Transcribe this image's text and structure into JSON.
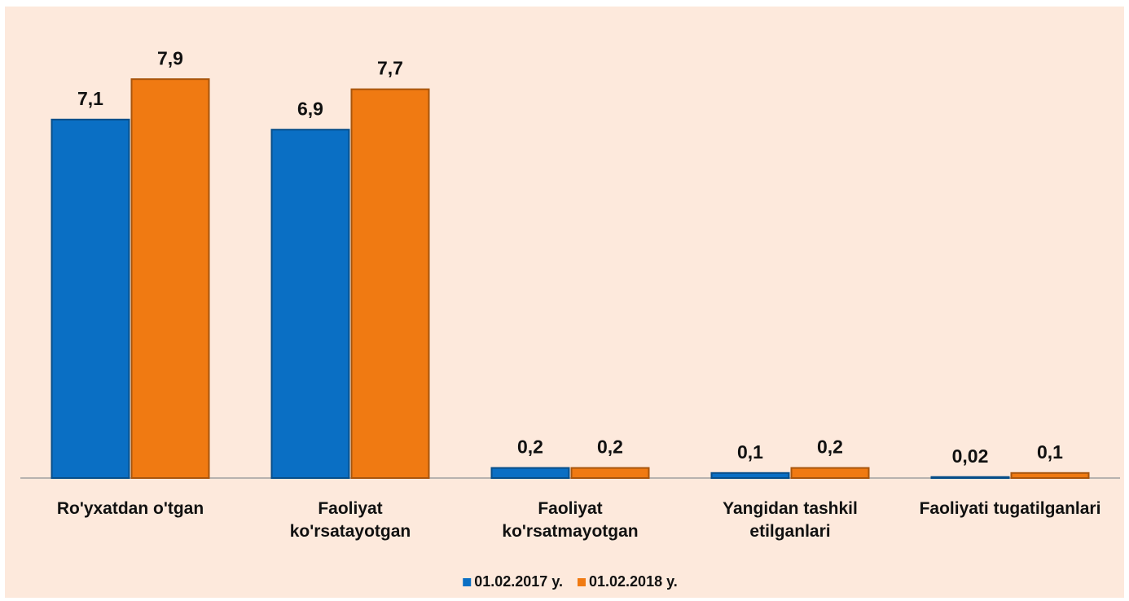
{
  "chart_data": {
    "type": "bar",
    "categories": [
      "Ro'yxatdan o'tgan",
      "Faoliyat\nko'rsatayotgan",
      "Faoliyat\nko'rsatmayotgan",
      "Yangidan tashkil\netilganlari",
      "Faoliyati tugatilganlari"
    ],
    "series": [
      {
        "name": "01.02.2017 y.",
        "color": "#0a6fc4",
        "values": [
          7.1,
          6.9,
          0.2,
          0.1,
          0.02
        ],
        "value_labels": [
          "7,1",
          "6,9",
          "0,2",
          "0,1",
          "0,02"
        ]
      },
      {
        "name": "01.02.2018 y.",
        "color": "#f07a12",
        "values": [
          7.9,
          7.7,
          0.2,
          0.2,
          0.1
        ],
        "value_labels": [
          "7,9",
          "7,7",
          "0,2",
          "0,2",
          "0,1"
        ]
      }
    ],
    "ylim": [
      0,
      8.5
    ],
    "legend": "bottom"
  }
}
